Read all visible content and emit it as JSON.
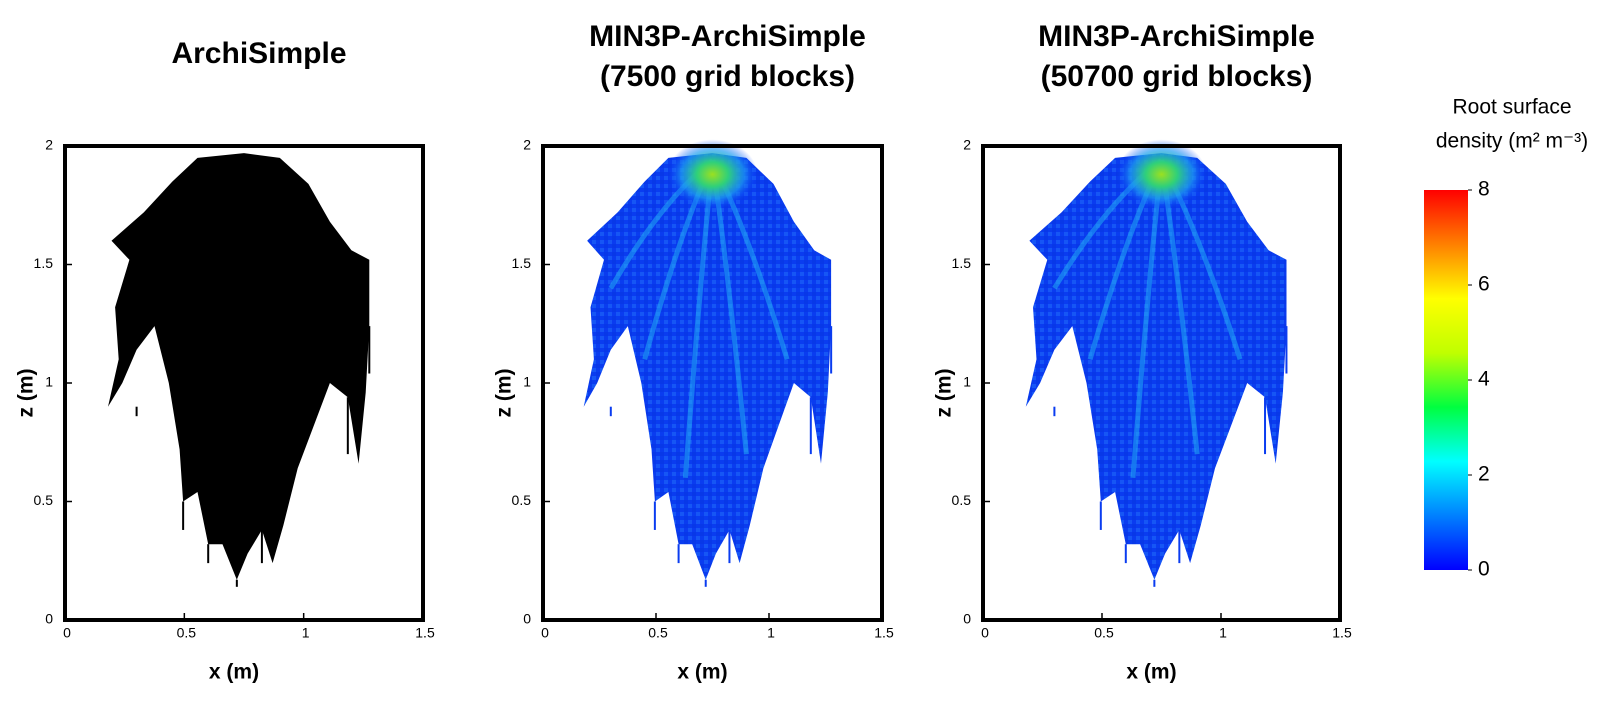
{
  "chart_data": [
    {
      "type": "image",
      "title": [
        "ArchiSimple"
      ],
      "xlabel": "x (m)",
      "ylabel": "z (m)",
      "xlim": [
        0,
        1.5
      ],
      "ylim": [
        0,
        2
      ],
      "xticks": [
        0,
        0.5,
        1,
        1.5
      ],
      "yticks": [
        0,
        0.5,
        1,
        1.5,
        2
      ],
      "color": "#000000"
    },
    {
      "type": "heatmap",
      "title": [
        "MIN3P-ArchiSimple",
        "(7500 grid blocks)"
      ],
      "xlabel": "x (m)",
      "ylabel": "z (m)",
      "xlim": [
        0,
        1.5
      ],
      "ylim": [
        0,
        2
      ],
      "xticks": [
        0,
        0.5,
        1,
        1.5
      ],
      "yticks": [
        0,
        0.5,
        1,
        1.5,
        2
      ],
      "color": "#0a3cf0"
    },
    {
      "type": "heatmap",
      "title": [
        "MIN3P-ArchiSimple",
        "(50700 grid blocks)"
      ],
      "xlabel": "x (m)",
      "ylabel": "z (m)",
      "xlim": [
        0,
        1.5
      ],
      "ylim": [
        0,
        2
      ],
      "xticks": [
        0,
        0.5,
        1,
        1.5
      ],
      "yticks": [
        0,
        0.5,
        1,
        1.5,
        2
      ],
      "color": "#0a3cf0"
    }
  ],
  "colorbar": {
    "label": [
      "Root surface",
      "density (m² m⁻³)"
    ],
    "lim": [
      0,
      8
    ],
    "ticks": [
      0,
      2,
      4,
      6,
      8
    ],
    "colors": [
      "#0000ff",
      "#0080ff",
      "#00ffff",
      "#00ff40",
      "#c0ff00",
      "#ffff00",
      "#ff8000",
      "#ff0000"
    ]
  }
}
